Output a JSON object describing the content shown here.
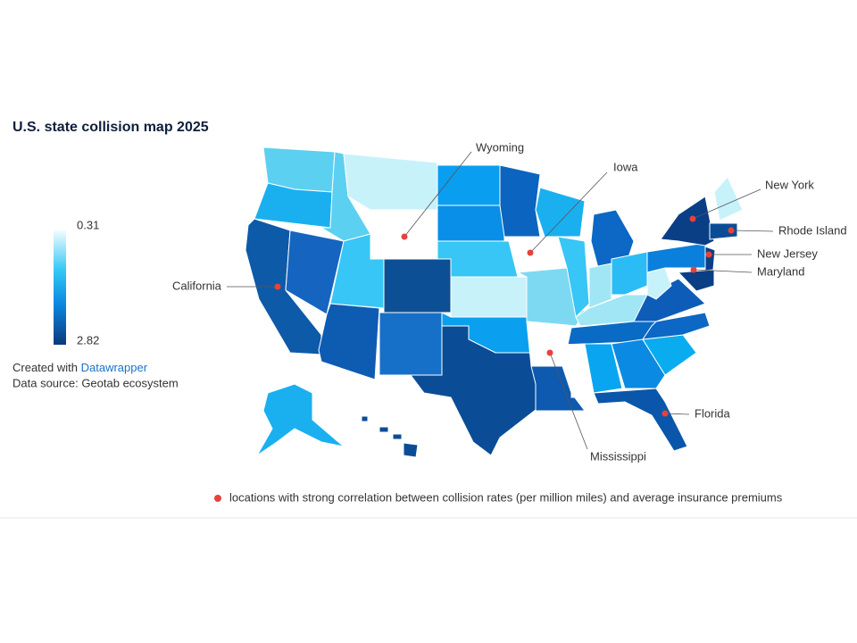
{
  "title": "U.S. state collision map 2025",
  "legend": {
    "min": 0.31,
    "max": 2.82
  },
  "credit": {
    "prefix": "Created with",
    "link": "Datawrapper",
    "source": "Data source: Geotab ecosystem"
  },
  "annotations": [
    "Wyoming",
    "Iowa",
    "New York",
    "Rhode Island",
    "New Jersey",
    "Maryland",
    "California",
    "Florida",
    "Mississippi"
  ],
  "footnote": "locations with strong correlation between collision rates (per million miles) and average insurance premiums"
}
